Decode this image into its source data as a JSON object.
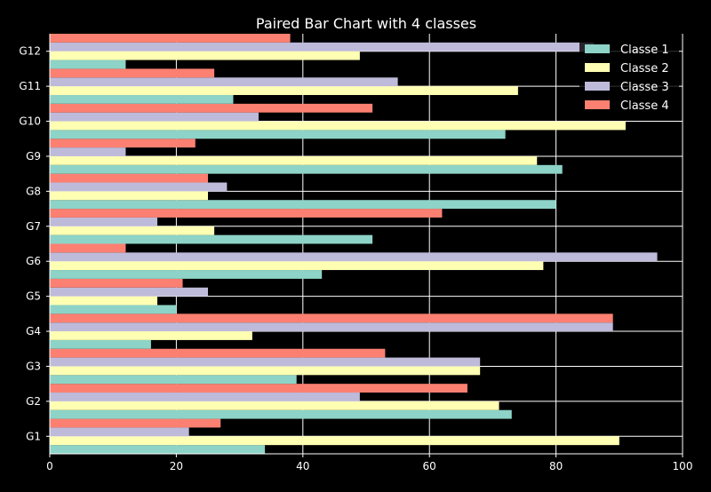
{
  "chart_data": {
    "type": "bar",
    "orientation": "horizontal",
    "title": "Paired Bar Chart with 4 classes",
    "xlabel": "",
    "ylabel": "",
    "xlim": [
      0,
      100
    ],
    "xticks": [
      0,
      20,
      40,
      60,
      80,
      100
    ],
    "grid": true,
    "legend_position": "top-right",
    "categories": [
      "G1",
      "G2",
      "G3",
      "G4",
      "G5",
      "G6",
      "G7",
      "G8",
      "G9",
      "G10",
      "G11",
      "G12"
    ],
    "series": [
      {
        "name": "Classe 1",
        "color": "#8dd3c7",
        "values": [
          34,
          73,
          39,
          16,
          20,
          43,
          51,
          80,
          81,
          72,
          29,
          12
        ]
      },
      {
        "name": "Classe 2",
        "color": "#ffffb3",
        "values": [
          90,
          71,
          68,
          32,
          17,
          78,
          26,
          25,
          77,
          91,
          74,
          49
        ]
      },
      {
        "name": "Classe 3",
        "color": "#bebada",
        "values": [
          22,
          49,
          68,
          89,
          25,
          96,
          17,
          28,
          12,
          33,
          55,
          86
        ]
      },
      {
        "name": "Classe 4",
        "color": "#fb8072",
        "values": [
          27,
          66,
          53,
          89,
          21,
          12,
          62,
          25,
          23,
          51,
          26,
          38
        ]
      }
    ],
    "colors": {
      "background": "#000000",
      "axis": "#ffffff",
      "grid": "#ffffff",
      "text": "#ffffff"
    }
  }
}
